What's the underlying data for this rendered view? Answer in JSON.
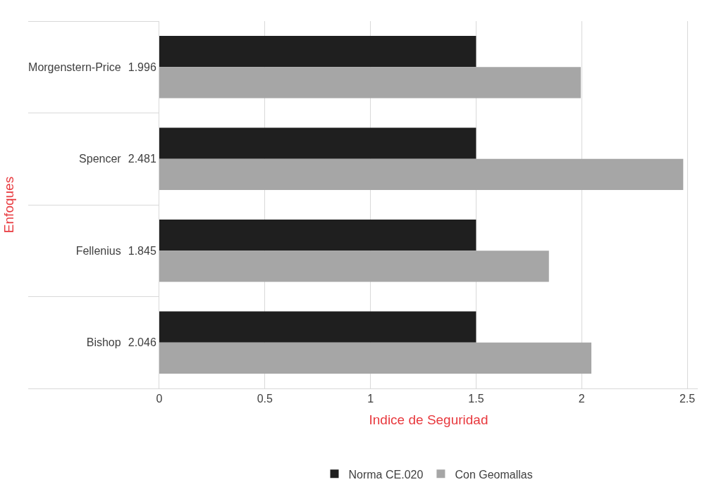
{
  "chart_data": {
    "type": "bar",
    "orientation": "horizontal",
    "xlabel": "Indice de Seguridad",
    "ylabel": "Enfoques",
    "categories": [
      "Morgenstern-Price",
      "Spencer",
      "Fellenius",
      "Bishop"
    ],
    "series": [
      {
        "name": "Norma CE.020",
        "color": "#1f1f1f",
        "values": [
          1.5,
          1.5,
          1.5,
          1.5
        ]
      },
      {
        "name": "Con Geomallas",
        "color": "#a6a6a6",
        "values": [
          1.996,
          2.481,
          1.845,
          2.046
        ],
        "value_labels": [
          "1.996",
          "2.481",
          "1.845",
          "2.046"
        ]
      }
    ],
    "xlim": [
      0,
      2.55
    ],
    "xticks": [
      0,
      0.5,
      1,
      1.5,
      2,
      2.5
    ],
    "grid": "x",
    "legend": "bottom"
  }
}
